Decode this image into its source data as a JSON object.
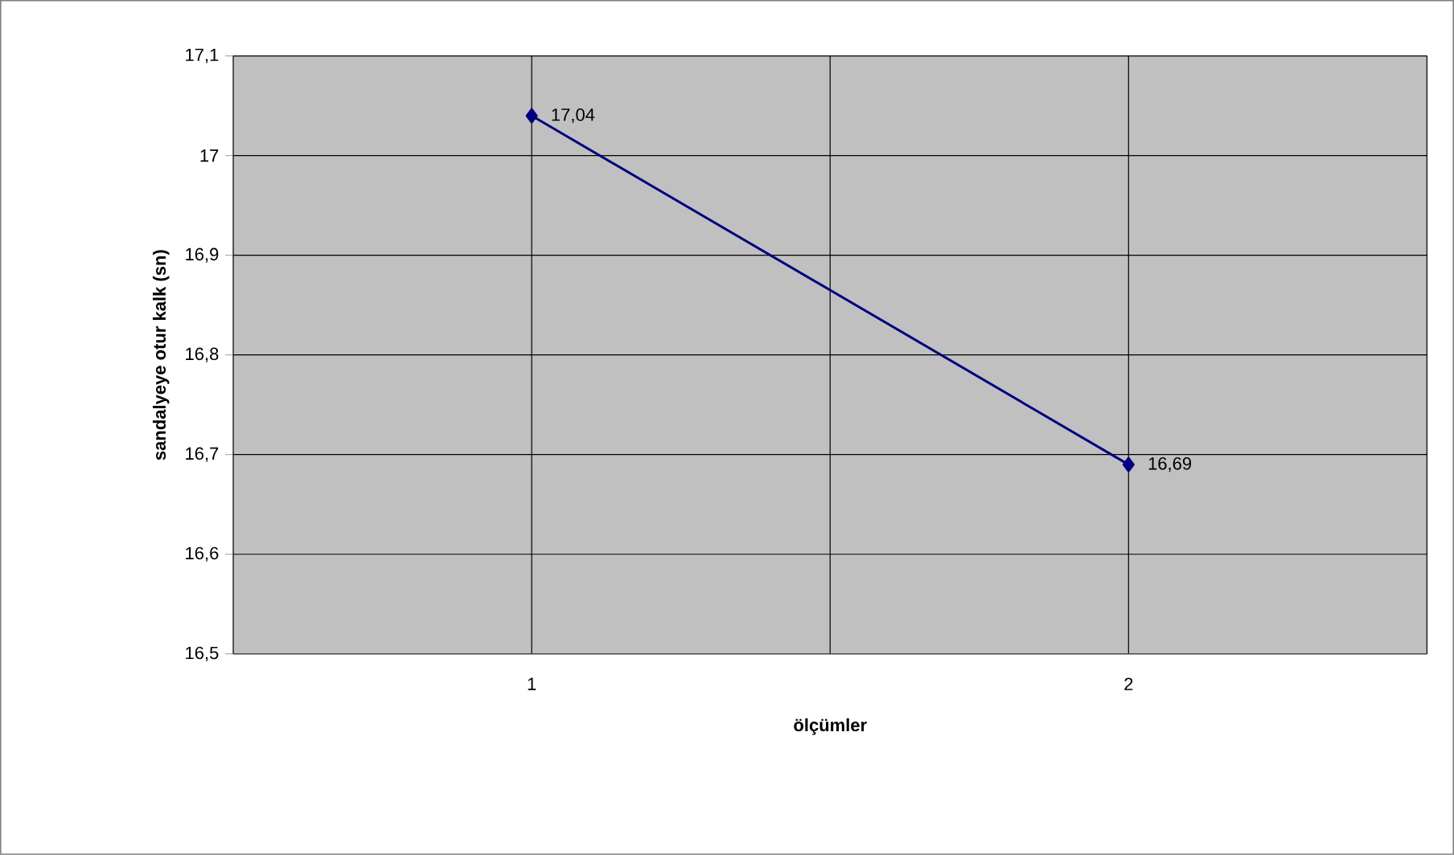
{
  "chart_data": {
    "type": "line",
    "xlabel": "ölçümler",
    "ylabel": "sandalyeye otur kalk (sn)",
    "categories": [
      "1",
      "2"
    ],
    "series": [
      {
        "color": "#000080",
        "values": [
          17.04,
          16.69
        ],
        "value_labels": [
          "17,04",
          "16,69"
        ]
      }
    ],
    "ylim": [
      16.5,
      17.1
    ],
    "yticks": [
      {
        "value": 16.5,
        "label": "16,5"
      },
      {
        "value": 16.6,
        "label": "16,6"
      },
      {
        "value": 16.7,
        "label": "16,7"
      },
      {
        "value": 16.8,
        "label": "16,8"
      },
      {
        "value": 16.9,
        "label": "16,9"
      },
      {
        "value": 17,
        "label": "17"
      },
      {
        "value": 17.1,
        "label": "17,1"
      }
    ],
    "grid": true,
    "marker": "diamond",
    "line_style": "solid"
  }
}
